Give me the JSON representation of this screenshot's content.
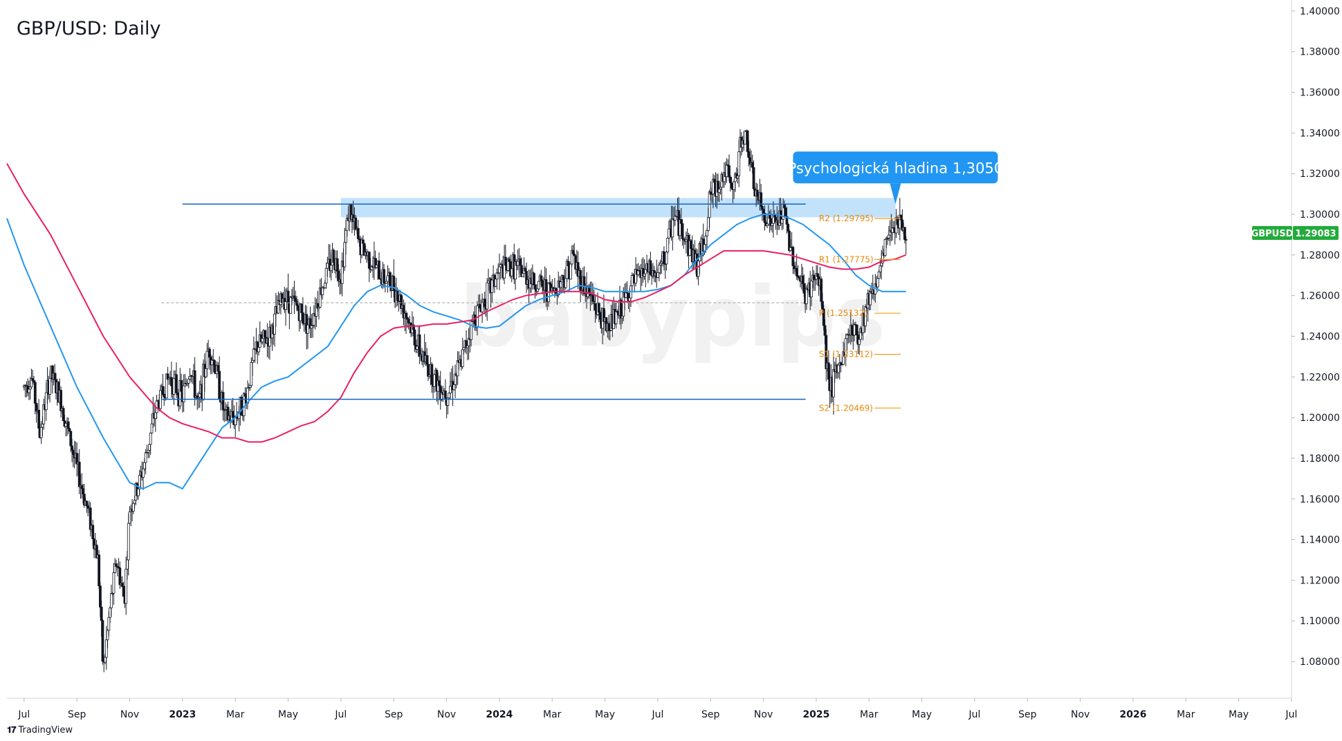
{
  "title": "GBP/USD: Daily",
  "brand": "TradingView",
  "watermark": "babypips",
  "colors": {
    "up": "#131722",
    "down": "#131722",
    "sma_fast": "#2196f3",
    "sma_slow": "#e91e63",
    "level_line": "#1565c0",
    "zone": "#90caf9",
    "pivot": "#f59b14",
    "callout": "#2196f3",
    "price_badge": "#22ab3b"
  },
  "chart_data": {
    "type": "candlestick",
    "symbol": "GBPUSD",
    "last_price": "1.29083",
    "y_ticks": [
      "1.40000",
      "1.38000",
      "1.36000",
      "1.34000",
      "1.32000",
      "1.30000",
      "1.28000",
      "1.26000",
      "1.24000",
      "1.22000",
      "1.20000",
      "1.18000",
      "1.16000",
      "1.14000",
      "1.12000",
      "1.10000",
      "1.08000"
    ],
    "x_ticks": [
      "Jul",
      "Sep",
      "Nov",
      "2023",
      "Mar",
      "May",
      "Jul",
      "Sep",
      "Nov",
      "2024",
      "Mar",
      "May",
      "Jul",
      "Sep",
      "Nov",
      "2025",
      "Mar",
      "May",
      "Jul",
      "Sep",
      "Nov",
      "2026",
      "Mar",
      "May",
      "Jul"
    ],
    "x_tick_months": [
      0,
      2,
      4,
      6,
      8,
      10,
      12,
      14,
      16,
      18,
      20,
      22,
      24,
      26,
      28,
      30,
      32,
      34,
      36,
      38,
      40,
      42,
      44,
      46,
      48
    ],
    "ylim": [
      1.062,
      1.402
    ],
    "xlim_months": [
      -0.65,
      48.0
    ],
    "price_path": [
      [
        0,
        1.215
      ],
      [
        0.3,
        1.22
      ],
      [
        0.6,
        1.192
      ],
      [
        1,
        1.222
      ],
      [
        1.4,
        1.208
      ],
      [
        2,
        1.175
      ],
      [
        2.5,
        1.15
      ],
      [
        2.8,
        1.13
      ],
      [
        3,
        1.075
      ],
      [
        3.25,
        1.105
      ],
      [
        3.5,
        1.13
      ],
      [
        3.8,
        1.11
      ],
      [
        4,
        1.155
      ],
      [
        4.3,
        1.165
      ],
      [
        4.6,
        1.18
      ],
      [
        5,
        1.205
      ],
      [
        5.5,
        1.22
      ],
      [
        6,
        1.21
      ],
      [
        6.3,
        1.225
      ],
      [
        6.6,
        1.205
      ],
      [
        7,
        1.235
      ],
      [
        7.3,
        1.222
      ],
      [
        7.6,
        1.2
      ],
      [
        8,
        1.2
      ],
      [
        8.4,
        1.21
      ],
      [
        8.8,
        1.235
      ],
      [
        9.3,
        1.24
      ],
      [
        9.8,
        1.26
      ],
      [
        10.3,
        1.255
      ],
      [
        10.8,
        1.245
      ],
      [
        11.3,
        1.265
      ],
      [
        11.7,
        1.28
      ],
      [
        12,
        1.27
      ],
      [
        12.3,
        1.303
      ],
      [
        12.7,
        1.285
      ],
      [
        13,
        1.28
      ],
      [
        13.5,
        1.27
      ],
      [
        14,
        1.265
      ],
      [
        14.5,
        1.25
      ],
      [
        15,
        1.232
      ],
      [
        15.6,
        1.218
      ],
      [
        16,
        1.212
      ],
      [
        16.5,
        1.225
      ],
      [
        17,
        1.248
      ],
      [
        17.5,
        1.26
      ],
      [
        18,
        1.272
      ],
      [
        18.5,
        1.275
      ],
      [
        19,
        1.27
      ],
      [
        19.5,
        1.265
      ],
      [
        20,
        1.262
      ],
      [
        20.5,
        1.27
      ],
      [
        20.8,
        1.28
      ],
      [
        21,
        1.27
      ],
      [
        21.5,
        1.258
      ],
      [
        22,
        1.245
      ],
      [
        22.5,
        1.25
      ],
      [
        23,
        1.265
      ],
      [
        23.5,
        1.272
      ],
      [
        24,
        1.27
      ],
      [
        24.3,
        1.28
      ],
      [
        24.6,
        1.3
      ],
      [
        25,
        1.29
      ],
      [
        25.5,
        1.275
      ],
      [
        25.8,
        1.29
      ],
      [
        26,
        1.31
      ],
      [
        26.3,
        1.315
      ],
      [
        26.6,
        1.322
      ],
      [
        26.8,
        1.31
      ],
      [
        27,
        1.32
      ],
      [
        27.2,
        1.34
      ],
      [
        27.4,
        1.335
      ],
      [
        27.6,
        1.315
      ],
      [
        28,
        1.3
      ],
      [
        28.4,
        1.295
      ],
      [
        28.8,
        1.3
      ],
      [
        29,
        1.285
      ],
      [
        29.3,
        1.27
      ],
      [
        29.6,
        1.26
      ],
      [
        30,
        1.27
      ],
      [
        30.2,
        1.26
      ],
      [
        30.4,
        1.225
      ],
      [
        30.6,
        1.215
      ],
      [
        31,
        1.23
      ],
      [
        31.3,
        1.245
      ],
      [
        31.6,
        1.24
      ],
      [
        32,
        1.26
      ],
      [
        32.4,
        1.27
      ],
      [
        32.7,
        1.29
      ],
      [
        33,
        1.298
      ],
      [
        33.2,
        1.295
      ],
      [
        33.4,
        1.29
      ]
    ],
    "sma_fast_path": [
      [
        -0.65,
        1.298
      ],
      [
        0,
        1.275
      ],
      [
        1,
        1.245
      ],
      [
        2,
        1.215
      ],
      [
        3,
        1.19
      ],
      [
        4,
        1.168
      ],
      [
        4.5,
        1.165
      ],
      [
        5,
        1.168
      ],
      [
        5.5,
        1.168
      ],
      [
        6,
        1.165
      ],
      [
        6.5,
        1.175
      ],
      [
        7,
        1.185
      ],
      [
        7.5,
        1.195
      ],
      [
        8,
        1.2
      ],
      [
        8.5,
        1.208
      ],
      [
        9,
        1.215
      ],
      [
        9.5,
        1.218
      ],
      [
        10,
        1.22
      ],
      [
        10.5,
        1.225
      ],
      [
        11,
        1.23
      ],
      [
        11.5,
        1.235
      ],
      [
        12,
        1.245
      ],
      [
        12.5,
        1.255
      ],
      [
        13,
        1.262
      ],
      [
        13.5,
        1.265
      ],
      [
        14,
        1.264
      ],
      [
        14.5,
        1.26
      ],
      [
        15,
        1.255
      ],
      [
        15.5,
        1.252
      ],
      [
        16,
        1.25
      ],
      [
        16.5,
        1.248
      ],
      [
        17,
        1.245
      ],
      [
        17.5,
        1.244
      ],
      [
        18,
        1.245
      ],
      [
        18.5,
        1.25
      ],
      [
        19,
        1.255
      ],
      [
        19.5,
        1.258
      ],
      [
        20,
        1.26
      ],
      [
        20.5,
        1.262
      ],
      [
        21,
        1.265
      ],
      [
        21.5,
        1.264
      ],
      [
        22,
        1.262
      ],
      [
        22.5,
        1.262
      ],
      [
        23,
        1.262
      ],
      [
        23.5,
        1.262
      ],
      [
        24,
        1.263
      ],
      [
        24.5,
        1.265
      ],
      [
        25,
        1.27
      ],
      [
        25.5,
        1.278
      ],
      [
        26,
        1.285
      ],
      [
        26.5,
        1.29
      ],
      [
        27,
        1.295
      ],
      [
        27.5,
        1.298
      ],
      [
        28,
        1.3
      ],
      [
        28.5,
        1.3
      ],
      [
        29,
        1.298
      ],
      [
        29.5,
        1.295
      ],
      [
        30,
        1.29
      ],
      [
        30.5,
        1.285
      ],
      [
        31,
        1.278
      ],
      [
        31.5,
        1.27
      ],
      [
        32,
        1.265
      ],
      [
        32.5,
        1.262
      ],
      [
        33,
        1.262
      ],
      [
        33.4,
        1.262
      ]
    ],
    "sma_slow_path": [
      [
        -0.65,
        1.325
      ],
      [
        0,
        1.31
      ],
      [
        1,
        1.29
      ],
      [
        2,
        1.265
      ],
      [
        3,
        1.24
      ],
      [
        4,
        1.22
      ],
      [
        5,
        1.205
      ],
      [
        5.5,
        1.2
      ],
      [
        6,
        1.197
      ],
      [
        6.5,
        1.195
      ],
      [
        7,
        1.193
      ],
      [
        7.5,
        1.19
      ],
      [
        8,
        1.19
      ],
      [
        8.5,
        1.188
      ],
      [
        9,
        1.188
      ],
      [
        9.5,
        1.19
      ],
      [
        10,
        1.193
      ],
      [
        10.5,
        1.196
      ],
      [
        11,
        1.198
      ],
      [
        11.5,
        1.203
      ],
      [
        12,
        1.21
      ],
      [
        12.5,
        1.222
      ],
      [
        13,
        1.232
      ],
      [
        13.5,
        1.24
      ],
      [
        14,
        1.244
      ],
      [
        14.5,
        1.245
      ],
      [
        15,
        1.245
      ],
      [
        15.5,
        1.246
      ],
      [
        16,
        1.246
      ],
      [
        16.5,
        1.247
      ],
      [
        17,
        1.248
      ],
      [
        17.5,
        1.252
      ],
      [
        18,
        1.255
      ],
      [
        18.5,
        1.258
      ],
      [
        19,
        1.26
      ],
      [
        19.5,
        1.261
      ],
      [
        20,
        1.262
      ],
      [
        20.5,
        1.262
      ],
      [
        21,
        1.262
      ],
      [
        21.5,
        1.261
      ],
      [
        22,
        1.258
      ],
      [
        22.5,
        1.257
      ],
      [
        23,
        1.257
      ],
      [
        23.5,
        1.259
      ],
      [
        24,
        1.262
      ],
      [
        24.5,
        1.265
      ],
      [
        25,
        1.27
      ],
      [
        25.5,
        1.274
      ],
      [
        26,
        1.278
      ],
      [
        26.5,
        1.282
      ],
      [
        27,
        1.282
      ],
      [
        27.5,
        1.282
      ],
      [
        28,
        1.282
      ],
      [
        28.5,
        1.281
      ],
      [
        29,
        1.28
      ],
      [
        29.5,
        1.278
      ],
      [
        30,
        1.276
      ],
      [
        30.5,
        1.274
      ],
      [
        31,
        1.273
      ],
      [
        31.5,
        1.273
      ],
      [
        32,
        1.274
      ],
      [
        32.5,
        1.277
      ],
      [
        33,
        1.278
      ],
      [
        33.4,
        1.28
      ]
    ],
    "levels": {
      "upper_line": 1.305,
      "upper_line_x": [
        6.0,
        29.6
      ],
      "zone_top": 1.308,
      "zone_bottom": 1.2985,
      "zone_x": [
        12.0,
        33.0
      ],
      "lower_line": 1.209,
      "lower_line_x": [
        5.2,
        29.6
      ],
      "dashed_line": 1.2565,
      "dashed_line_x": [
        5.2,
        29.6
      ]
    },
    "pivots": [
      {
        "label": "R2 (1.29795)",
        "value": 1.29795
      },
      {
        "label": "R1 (1.27775)",
        "value": 1.27775
      },
      {
        "label": "P (1.25132)",
        "value": 1.25132
      },
      {
        "label": "S1 (1.23112)",
        "value": 1.23112
      },
      {
        "label": "S2 (1.20469)",
        "value": 1.20469
      }
    ],
    "pivot_x": [
      30.0,
      33.2
    ],
    "annotation": {
      "text": "Psychologická hladina 1,3050",
      "value": 1.305,
      "x_month": 33.0
    }
  }
}
